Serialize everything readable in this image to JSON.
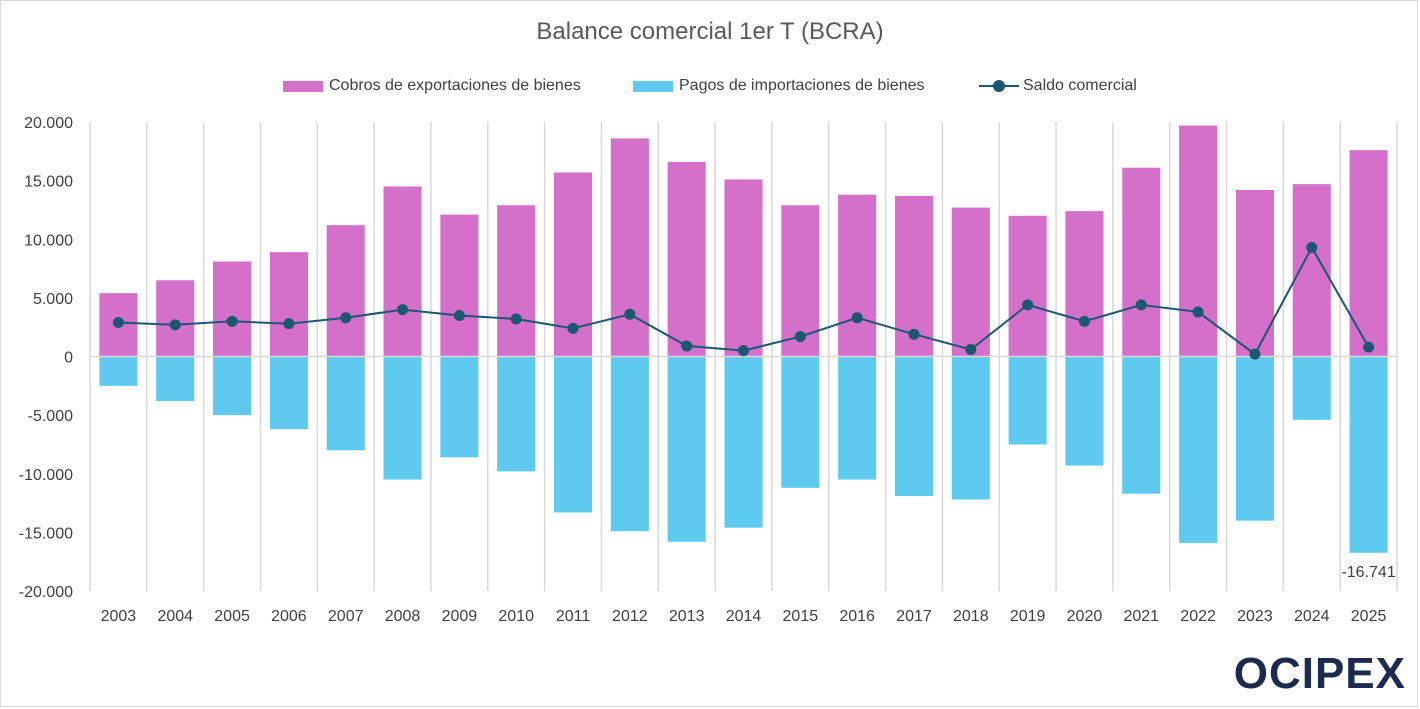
{
  "chart_data": {
    "type": "bar",
    "title": "Balance comercial 1er T (BCRA)",
    "categories": [
      "2003",
      "2004",
      "2005",
      "2006",
      "2007",
      "2008",
      "2009",
      "2010",
      "2011",
      "2012",
      "2013",
      "2014",
      "2015",
      "2016",
      "2017",
      "2018",
      "2019",
      "2020",
      "2021",
      "2022",
      "2023",
      "2024",
      "2025"
    ],
    "series": [
      {
        "name": "Cobros de exportaciones de bienes",
        "kind": "bar",
        "color": "#d46fca",
        "values": [
          5400,
          6500,
          8100,
          8900,
          11200,
          14500,
          12100,
          12900,
          15700,
          18600,
          16600,
          15100,
          12900,
          13800,
          13700,
          12700,
          12000,
          12400,
          16100,
          19700,
          14200,
          14700,
          17600
        ]
      },
      {
        "name": "Pagos de importaciones de bienes",
        "kind": "bar",
        "color": "#5fcaf0",
        "values": [
          -2500,
          -3800,
          -5000,
          -6200,
          -8000,
          -10500,
          -8600,
          -9800,
          -13300,
          -14900,
          -15800,
          -14600,
          -11200,
          -10500,
          -11900,
          -12200,
          -7500,
          -9300,
          -11700,
          -15900,
          -14000,
          -5400,
          -16741
        ]
      },
      {
        "name": "Saldo comercial",
        "kind": "line",
        "color": "#1c5675",
        "values": [
          2900,
          2700,
          3000,
          2800,
          3300,
          4000,
          3500,
          3200,
          2400,
          3600,
          900,
          500,
          1700,
          3300,
          1900,
          600,
          4400,
          3000,
          4400,
          3800,
          200,
          9300,
          800
        ]
      }
    ],
    "ylim": [
      -20000,
      20000
    ],
    "yticks": [
      20000,
      15000,
      10000,
      5000,
      0,
      -5000,
      -10000,
      -15000,
      -20000
    ],
    "ytick_labels": [
      "20.000",
      "15.000",
      "10.000",
      "5.000",
      "0",
      "-5.000",
      "-10.000",
      "-15.000",
      "-20.000"
    ],
    "grid": "vertical category separators",
    "legend": "top",
    "annotations": [
      {
        "category": "2025",
        "series": "Pagos de importaciones de bienes",
        "label": "-16.741"
      }
    ]
  },
  "brand": {
    "logo_text": "OCIPEX",
    "color": "#1b2a4e"
  }
}
